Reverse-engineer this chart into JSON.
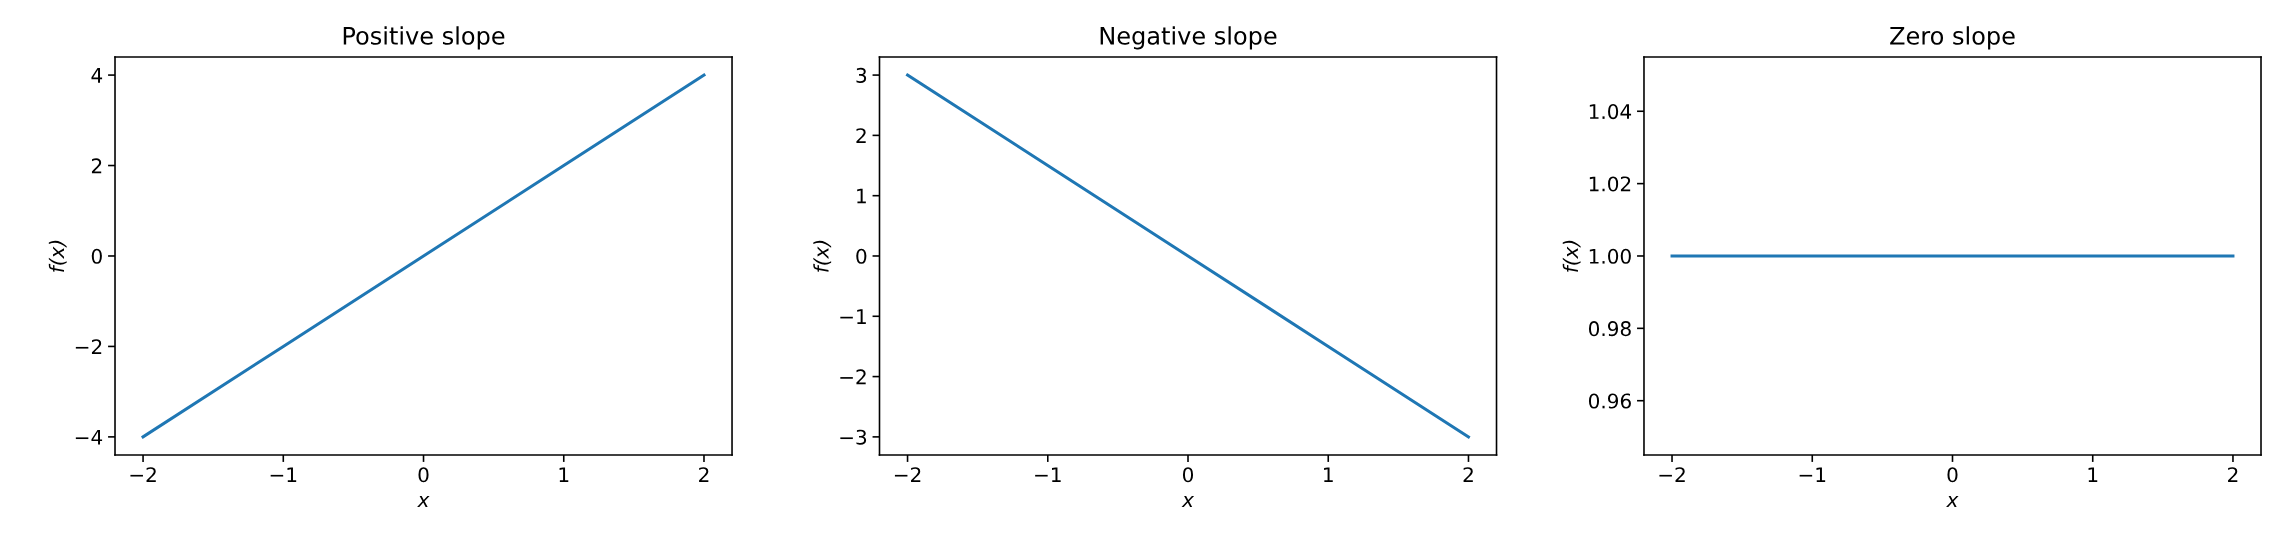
{
  "chart_data": [
    {
      "type": "line",
      "title": "Positive slope",
      "xlabel": "x",
      "ylabel": "f(x)",
      "x": [
        -2,
        -1,
        0,
        1,
        2
      ],
      "series": [
        {
          "color": "#1f77b4",
          "values": [
            -4,
            -2,
            0,
            2,
            4
          ]
        }
      ],
      "xlim": [
        -2.2,
        2.2
      ],
      "ylim": [
        -4.4,
        4.4
      ],
      "xticks": [
        -2,
        -1,
        0,
        1,
        2
      ],
      "yticks": [
        -4,
        -2,
        0,
        2,
        4
      ]
    },
    {
      "type": "line",
      "title": "Negative slope",
      "xlabel": "x",
      "ylabel": "f(x)",
      "x": [
        -2,
        -1,
        0,
        1,
        2
      ],
      "series": [
        {
          "color": "#1f77b4",
          "values": [
            3,
            1.5,
            0,
            -1.5,
            -3
          ]
        }
      ],
      "xlim": [
        -2.2,
        2.2
      ],
      "ylim": [
        -3.3,
        3.3
      ],
      "xticks": [
        -2,
        -1,
        0,
        1,
        2
      ],
      "yticks": [
        -3,
        -2,
        -1,
        0,
        1,
        2,
        3
      ]
    },
    {
      "type": "line",
      "title": "Zero slope",
      "xlabel": "x",
      "ylabel": "f(x)",
      "x": [
        -2,
        -1,
        0,
        1,
        2
      ],
      "series": [
        {
          "color": "#1f77b4",
          "values": [
            1,
            1,
            1,
            1,
            1
          ]
        }
      ],
      "xlim": [
        -2.2,
        2.2
      ],
      "ylim": [
        0.945,
        1.055
      ],
      "xticks": [
        -2,
        -1,
        0,
        1,
        2
      ],
      "yticks": [
        0.96,
        0.98,
        {
          "value": 1,
          "label": "1.00"
        },
        1.02,
        1.04
      ]
    }
  ]
}
